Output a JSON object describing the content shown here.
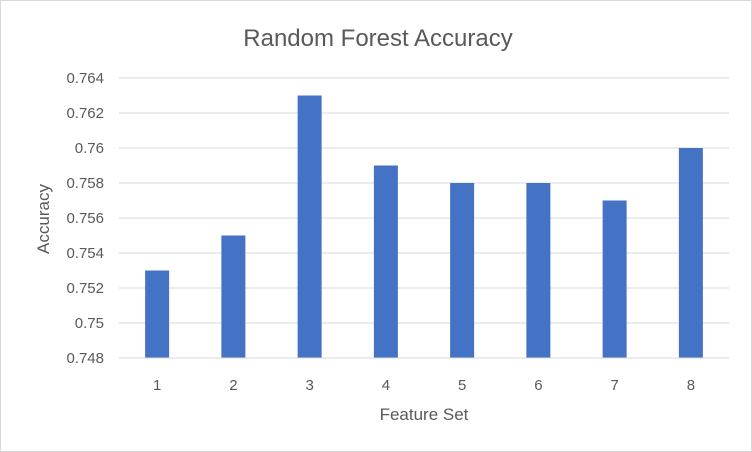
{
  "chart_data": {
    "type": "bar",
    "title": "Random Forest Accuracy",
    "xlabel": "Feature Set",
    "ylabel": "Accuracy",
    "categories": [
      "1",
      "2",
      "3",
      "4",
      "5",
      "6",
      "7",
      "8"
    ],
    "values": [
      0.753,
      0.755,
      0.763,
      0.759,
      0.758,
      0.758,
      0.757,
      0.76
    ],
    "ylim": [
      0.748,
      0.764
    ],
    "yticks": [
      "0.748",
      "0.75",
      "0.752",
      "0.754",
      "0.756",
      "0.758",
      "0.76",
      "0.762",
      "0.764"
    ],
    "grid": true,
    "legend": "none",
    "bar_color": "#4472C4"
  }
}
